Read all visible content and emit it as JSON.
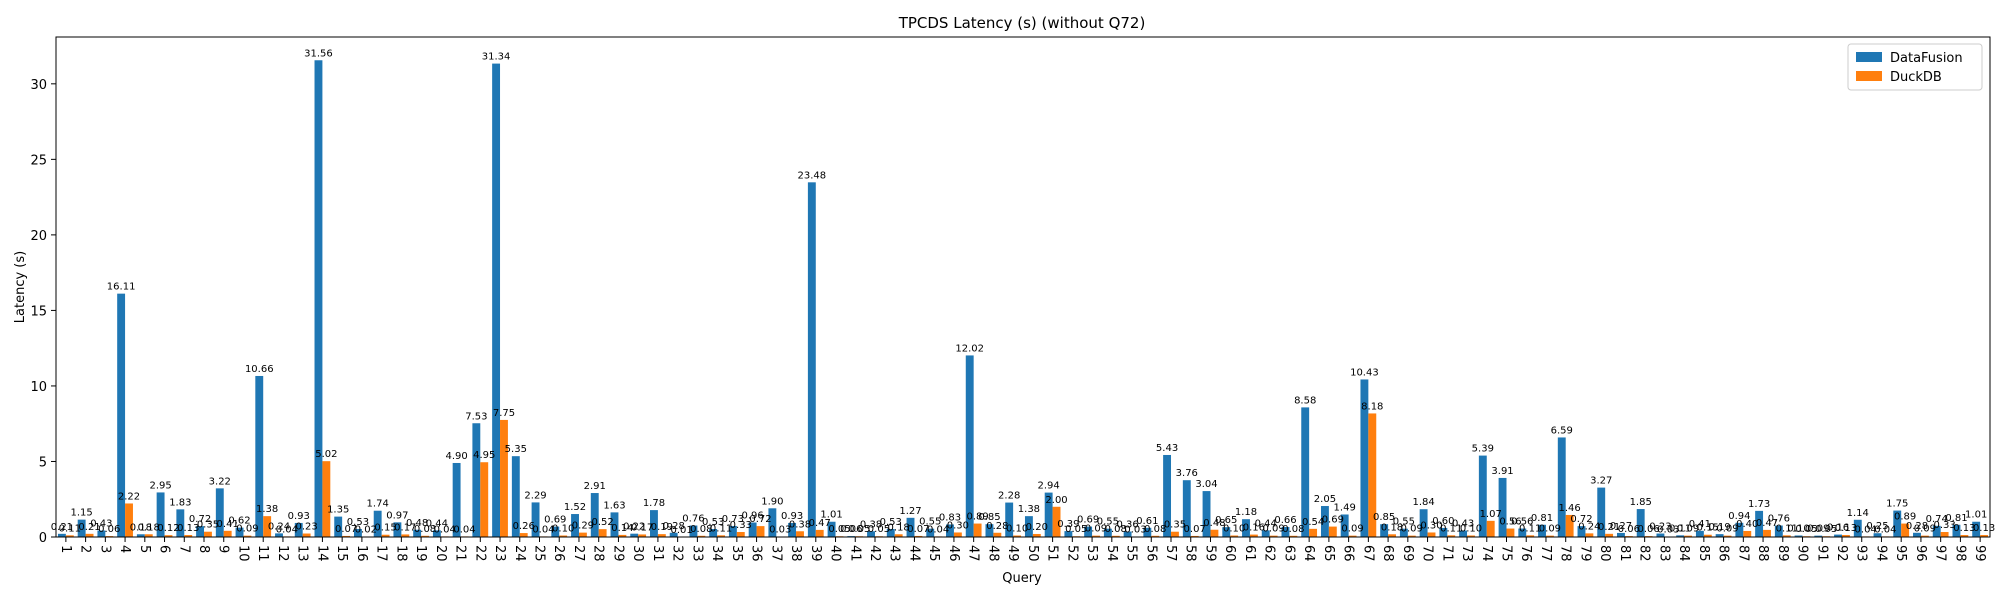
{
  "chart_data": {
    "type": "bar",
    "title": "TPCDS Latency (s) (without Q72)",
    "xlabel": "Query",
    "ylabel": "Latency (s)",
    "ylim": [
      0,
      33.1
    ],
    "yticks": [
      0,
      5,
      10,
      15,
      20,
      25,
      30
    ],
    "legend_position": "top-right",
    "categories": [
      "1",
      "2",
      "3",
      "4",
      "5",
      "6",
      "7",
      "8",
      "9",
      "10",
      "11",
      "12",
      "13",
      "14",
      "15",
      "16",
      "17",
      "18",
      "19",
      "20",
      "21",
      "22",
      "23",
      "24",
      "25",
      "26",
      "27",
      "28",
      "29",
      "30",
      "31",
      "32",
      "33",
      "34",
      "35",
      "36",
      "37",
      "38",
      "39",
      "40",
      "41",
      "42",
      "43",
      "44",
      "45",
      "46",
      "47",
      "48",
      "49",
      "50",
      "51",
      "52",
      "53",
      "54",
      "55",
      "56",
      "57",
      "58",
      "59",
      "60",
      "61",
      "62",
      "63",
      "64",
      "65",
      "66",
      "67",
      "68",
      "69",
      "70",
      "71",
      "73",
      "74",
      "75",
      "76",
      "77",
      "78",
      "79",
      "80",
      "81",
      "82",
      "83",
      "84",
      "85",
      "86",
      "87",
      "88",
      "89",
      "90",
      "91",
      "92",
      "93",
      "94",
      "95",
      "96",
      "97",
      "98",
      "99"
    ],
    "series": [
      {
        "name": "DataFusion",
        "color": "#1f77b4",
        "values": [
          0.21,
          1.15,
          0.43,
          16.11,
          0.18,
          2.95,
          1.83,
          0.72,
          3.22,
          0.62,
          10.66,
          0.24,
          0.93,
          31.56,
          1.35,
          0.53,
          1.74,
          0.97,
          0.48,
          0.44,
          4.9,
          7.53,
          31.34,
          5.35,
          2.29,
          0.69,
          1.52,
          2.91,
          1.63,
          0.22,
          1.78,
          0.28,
          0.76,
          0.53,
          0.73,
          0.96,
          1.9,
          0.93,
          23.48,
          1.01,
          0.06,
          0.38,
          0.53,
          1.27,
          0.55,
          0.83,
          12.02,
          0.85,
          2.28,
          1.38,
          2.94,
          0.39,
          0.69,
          0.55,
          0.36,
          0.61,
          5.43,
          3.76,
          3.04,
          0.65,
          1.18,
          0.44,
          0.66,
          8.58,
          2.05,
          1.49,
          10.43,
          0.85,
          0.55,
          1.84,
          0.6,
          0.43,
          5.39,
          3.91,
          0.56,
          0.81,
          6.59,
          0.72,
          3.27,
          0.27,
          1.85,
          0.23,
          0.11,
          0.41,
          0.19,
          0.94,
          1.73,
          0.76,
          0.1,
          0.09,
          0.16,
          1.14,
          0.25,
          1.75,
          0.28,
          0.74,
          0.81,
          1.01
        ]
      },
      {
        "name": "DuckDB",
        "color": "#ff7f0e",
        "values": [
          0.11,
          0.21,
          0.06,
          2.22,
          0.18,
          0.12,
          0.13,
          0.35,
          0.41,
          0.09,
          1.38,
          0.04,
          0.23,
          5.02,
          0.07,
          0.02,
          0.15,
          0.17,
          0.08,
          0.04,
          0.04,
          4.95,
          7.75,
          0.26,
          0.04,
          0.1,
          0.29,
          0.52,
          0.14,
          0.17,
          0.19,
          0.01,
          0.08,
          0.11,
          0.33,
          0.72,
          0.03,
          0.38,
          0.47,
          0.05,
          0.05,
          0.05,
          0.18,
          0.07,
          0.04,
          0.3,
          0.89,
          0.28,
          0.1,
          0.2,
          2.0,
          0.05,
          0.09,
          0.08,
          0.03,
          0.08,
          0.35,
          0.07,
          0.48,
          0.1,
          0.16,
          0.09,
          0.08,
          0.54,
          0.69,
          0.09,
          8.18,
          0.18,
          0.09,
          0.3,
          0.11,
          0.1,
          1.07,
          0.56,
          0.11,
          0.09,
          1.46,
          0.24,
          0.21,
          0.06,
          0.06,
          0.03,
          0.09,
          0.15,
          0.09,
          0.4,
          0.47,
          0.11,
          0.05,
          0.05,
          0.13,
          0.04,
          0.04,
          0.89,
          0.09,
          0.33,
          0.13,
          0.13
        ]
      }
    ]
  }
}
